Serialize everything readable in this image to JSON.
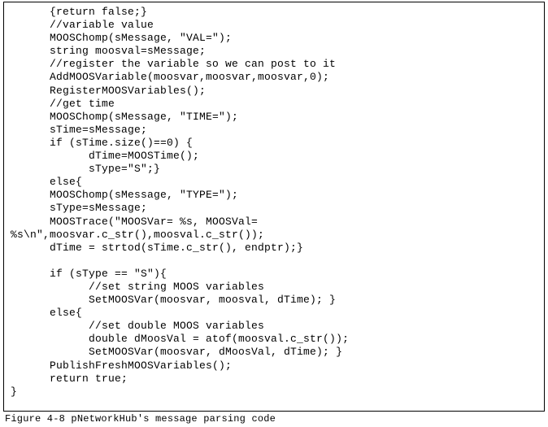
{
  "code_lines": [
    "      {return false;}",
    "      //variable value",
    "      MOOSChomp(sMessage, \"VAL=\");",
    "      string moosval=sMessage;",
    "      //register the variable so we can post to it",
    "      AddMOOSVariable(moosvar,moosvar,moosvar,0);",
    "      RegisterMOOSVariables();",
    "      //get time",
    "      MOOSChomp(sMessage, \"TIME=\");",
    "      sTime=sMessage;",
    "      if (sTime.size()==0) {",
    "            dTime=MOOSTime();",
    "            sType=\"S\";}",
    "      else{",
    "      MOOSChomp(sMessage, \"TYPE=\");",
    "      sType=sMessage;",
    "      MOOSTrace(\"MOOSVar= %s, MOOSVal=",
    "%s\\n\",moosvar.c_str(),moosval.c_str());",
    "      dTime = strtod(sTime.c_str(), endptr);}",
    "",
    "      if (sType == \"S\"){",
    "            //set string MOOS variables",
    "            SetMOOSVar(moosvar, moosval, dTime); }",
    "      else{",
    "            //set double MOOS variables",
    "            double dMoosVal = atof(moosval.c_str());",
    "            SetMOOSVar(moosvar, dMoosVal, dTime); }",
    "      PublishFreshMOOSVariables();",
    "      return true;",
    "}"
  ],
  "caption": "Figure 4-8 pNetworkHub's message parsing code"
}
